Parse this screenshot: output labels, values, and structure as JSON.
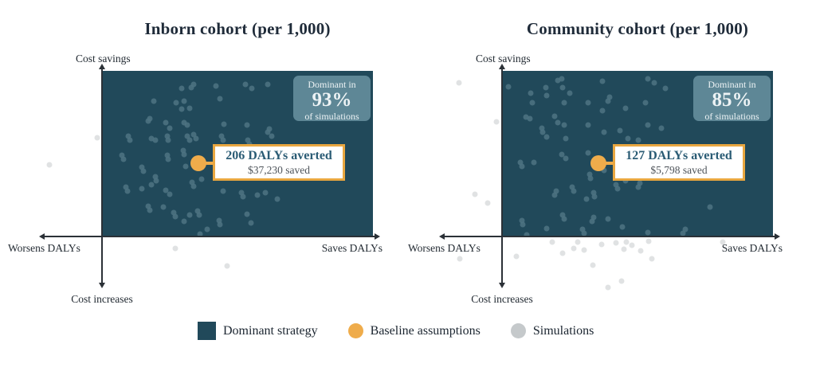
{
  "colors": {
    "dominant_fill": "#21495A",
    "sim_in": "#4D7383",
    "sim_out": "#D8DBDC",
    "baseline": "#EFAC4B",
    "badge_bg": "#5E8796",
    "badge_text": "#EDF3F5",
    "callout_border": "#E9A740",
    "callout_heading": "#2B5C75",
    "callout_sub": "#4E545A",
    "title_text": "#1F2B39",
    "label_text": "#232B33",
    "legend_text": "#1B2530",
    "legend_sim_swatch": "#C5C9CB",
    "axis": "#2B3137"
  },
  "chart_data": [
    {
      "type": "scatter",
      "title": "Inborn cohort (per 1,000)",
      "axis_labels": {
        "top": "Cost savings",
        "left": "Worsens DALYs",
        "right": "Saves DALYs",
        "bottom": "Cost increases"
      },
      "badge": {
        "line1": "Dominant in",
        "pct": "93%",
        "line2": "of simulations"
      },
      "dominant_share_pct": 93,
      "callout": {
        "heading": "206 DALYs averted",
        "sub": "$37,230 saved"
      },
      "baseline": {
        "dalys_averted": 206,
        "cost_saved_usd": 37230
      },
      "axes_note": "no numeric ticks shown; point coords are percent of dominant-quadrant plot area (x right+, y down+)",
      "points_dominant_quadrant": [
        [
          29.4,
          10.5
        ],
        [
          33.8,
          8.1
        ],
        [
          32.9,
          10.0
        ],
        [
          42.2,
          8.9
        ],
        [
          52.9,
          8.1
        ],
        [
          55.4,
          10.5
        ],
        [
          61.3,
          8.1
        ],
        [
          19.1,
          18.5
        ],
        [
          27.4,
          19.3
        ],
        [
          30.4,
          18.5
        ],
        [
          32.4,
          22.5
        ],
        [
          43.6,
          16.9
        ],
        [
          29.4,
          23.3
        ],
        [
          17.6,
          28.9
        ],
        [
          17.1,
          30.5
        ],
        [
          23.5,
          31.2
        ],
        [
          25.0,
          34.4
        ],
        [
          30.4,
          31.2
        ],
        [
          31.4,
          32.9
        ],
        [
          45.1,
          32.1
        ],
        [
          53.4,
          32.9
        ],
        [
          61.8,
          35.3
        ],
        [
          9.8,
          39.2
        ],
        [
          10.3,
          41.6
        ],
        [
          18.1,
          40.8
        ],
        [
          19.6,
          41.6
        ],
        [
          24.0,
          39.2
        ],
        [
          24.5,
          41.6
        ],
        [
          31.4,
          39.2
        ],
        [
          32.4,
          41.6
        ],
        [
          33.8,
          38.4
        ],
        [
          34.8,
          40.8
        ],
        [
          44.1,
          39.2
        ],
        [
          44.6,
          41.6
        ],
        [
          53.9,
          41.6
        ],
        [
          54.4,
          44.0
        ],
        [
          61.3,
          36.8
        ],
        [
          62.7,
          39.2
        ],
        [
          7.4,
          51.2
        ],
        [
          7.9,
          53.6
        ],
        [
          14.7,
          58.4
        ],
        [
          15.2,
          60.8
        ],
        [
          24.0,
          51.2
        ],
        [
          24.5,
          53.6
        ],
        [
          29.9,
          48.0
        ],
        [
          30.4,
          50.4
        ],
        [
          30.9,
          57.6
        ],
        [
          35.3,
          53.6
        ],
        [
          19.6,
          64.0
        ],
        [
          20.1,
          66.4
        ],
        [
          8.8,
          70.3
        ],
        [
          9.3,
          72.7
        ],
        [
          14.7,
          71.1
        ],
        [
          18.1,
          68.8
        ],
        [
          23.5,
          71.9
        ],
        [
          25.0,
          74.3
        ],
        [
          33.3,
          67.1
        ],
        [
          33.8,
          69.5
        ],
        [
          36.8,
          65.6
        ],
        [
          44.6,
          72.7
        ],
        [
          51.5,
          73.5
        ],
        [
          52.0,
          75.9
        ],
        [
          57.4,
          75.1
        ],
        [
          60.3,
          73.5
        ],
        [
          64.7,
          77.5
        ],
        [
          17.1,
          81.5
        ],
        [
          17.6,
          83.9
        ],
        [
          22.6,
          82.3
        ],
        [
          26.5,
          85.5
        ],
        [
          27.0,
          87.9
        ],
        [
          30.4,
          91.1
        ],
        [
          32.4,
          87.1
        ],
        [
          35.3,
          84.7
        ],
        [
          35.8,
          87.1
        ],
        [
          38.7,
          95.8
        ],
        [
          43.1,
          90.3
        ],
        [
          43.6,
          92.7
        ],
        [
          53.4,
          86.3
        ],
        [
          54.9,
          91.9
        ],
        [
          36.2,
          98.6
        ]
      ],
      "points_outside": [
        [
          -1.8,
          40.2
        ],
        [
          -19.4,
          56.9
        ],
        [
          27.1,
          107.2
        ],
        [
          46.3,
          117.6
        ]
      ]
    },
    {
      "type": "scatter",
      "title": "Community cohort (per 1,000)",
      "axis_labels": {
        "top": "Cost savings",
        "left": "Worsens DALYs",
        "right": "Saves DALYs",
        "bottom": "Cost increases"
      },
      "badge": {
        "line1": "Dominant in",
        "pct": "85%",
        "line2": "of simulations"
      },
      "dominant_share_pct": 85,
      "callout": {
        "heading": "127 DALYs averted",
        "sub": "$5,798 saved"
      },
      "baseline": {
        "dalys_averted": 127,
        "cost_saved_usd": 5798
      },
      "axes_note": "no numeric ticks shown; point coords are percent of dominant-quadrant plot area (x right+, y down+)",
      "points_dominant_quadrant": [
        [
          20.5,
          5.7
        ],
        [
          22.0,
          4.6
        ],
        [
          37.2,
          6.2
        ],
        [
          53.8,
          4.9
        ],
        [
          56.3,
          7.3
        ],
        [
          60.2,
          10.5
        ],
        [
          2.4,
          9.7
        ],
        [
          10.7,
          13.7
        ],
        [
          16.1,
          10.0
        ],
        [
          16.6,
          14.8
        ],
        [
          22.4,
          10.0
        ],
        [
          24.9,
          13.7
        ],
        [
          11.2,
          19.3
        ],
        [
          22.9,
          19.3
        ],
        [
          31.8,
          19.3
        ],
        [
          39.1,
          18.5
        ],
        [
          39.6,
          16.1
        ],
        [
          52.9,
          19.3
        ],
        [
          45.5,
          22.5
        ],
        [
          8.7,
          28.1
        ],
        [
          10.2,
          28.9
        ],
        [
          19.5,
          27.3
        ],
        [
          20.5,
          31.2
        ],
        [
          22.9,
          32.9
        ],
        [
          31.8,
          32.9
        ],
        [
          37.2,
          24.1
        ],
        [
          37.6,
          36.8
        ],
        [
          43.5,
          36.0
        ],
        [
          46.5,
          40.8
        ],
        [
          50.4,
          41.6
        ],
        [
          53.8,
          32.9
        ],
        [
          58.7,
          34.4
        ],
        [
          14.6,
          34.4
        ],
        [
          15.1,
          36.8
        ],
        [
          16.6,
          40.0
        ],
        [
          23.4,
          40.8
        ],
        [
          6.8,
          55.2
        ],
        [
          7.3,
          57.6
        ],
        [
          11.7,
          55.2
        ],
        [
          22.0,
          50.4
        ],
        [
          23.4,
          52.8
        ],
        [
          31.8,
          49.6
        ],
        [
          32.3,
          62.3
        ],
        [
          32.7,
          64.7
        ],
        [
          37.6,
          60.0
        ],
        [
          19.5,
          75.1
        ],
        [
          20.0,
          72.7
        ],
        [
          25.9,
          70.3
        ],
        [
          26.4,
          72.7
        ],
        [
          31.3,
          77.5
        ],
        [
          33.7,
          73.5
        ],
        [
          34.2,
          75.9
        ],
        [
          42.1,
          68.8
        ],
        [
          42.6,
          71.1
        ],
        [
          45.5,
          66.4
        ],
        [
          50.4,
          70.3
        ],
        [
          50.9,
          67.9
        ],
        [
          76.9,
          82.3
        ],
        [
          22.4,
          87.1
        ],
        [
          22.9,
          89.5
        ],
        [
          7.3,
          90.3
        ],
        [
          7.7,
          92.7
        ],
        [
          16.6,
          95.1
        ],
        [
          29.8,
          95.8
        ],
        [
          33.2,
          91.1
        ],
        [
          33.7,
          88.7
        ],
        [
          39.1,
          89.5
        ],
        [
          44.5,
          94.3
        ],
        [
          9.2,
          99.0
        ],
        [
          67.6,
          95.8
        ],
        [
          30.4,
          97.9
        ],
        [
          53.9,
          97.5
        ],
        [
          66.7,
          97.9
        ]
      ],
      "points_outside": [
        [
          -15.9,
          7.2
        ],
        [
          -2.1,
          31.0
        ],
        [
          -10.1,
          74.3
        ],
        [
          -5.2,
          79.9
        ],
        [
          -15.7,
          113.4
        ],
        [
          5.4,
          111.8
        ],
        [
          18.5,
          103.3
        ],
        [
          22.4,
          109.9
        ],
        [
          26.5,
          107.0
        ],
        [
          27.9,
          103.3
        ],
        [
          30.3,
          108.1
        ],
        [
          33.5,
          117.2
        ],
        [
          36.8,
          104.6
        ],
        [
          42.1,
          103.8
        ],
        [
          44.1,
          126.8
        ],
        [
          45.0,
          107.5
        ],
        [
          45.9,
          103.3
        ],
        [
          47.9,
          105.3
        ],
        [
          51.1,
          108.6
        ],
        [
          54.1,
          102.9
        ],
        [
          55.3,
          113.4
        ],
        [
          39.1,
          130.9
        ],
        [
          81.4,
          103.3
        ]
      ]
    }
  ],
  "legend": {
    "items": [
      {
        "label": "Dominant strategy"
      },
      {
        "label": "Baseline assumptions"
      },
      {
        "label": "Simulations"
      }
    ]
  }
}
